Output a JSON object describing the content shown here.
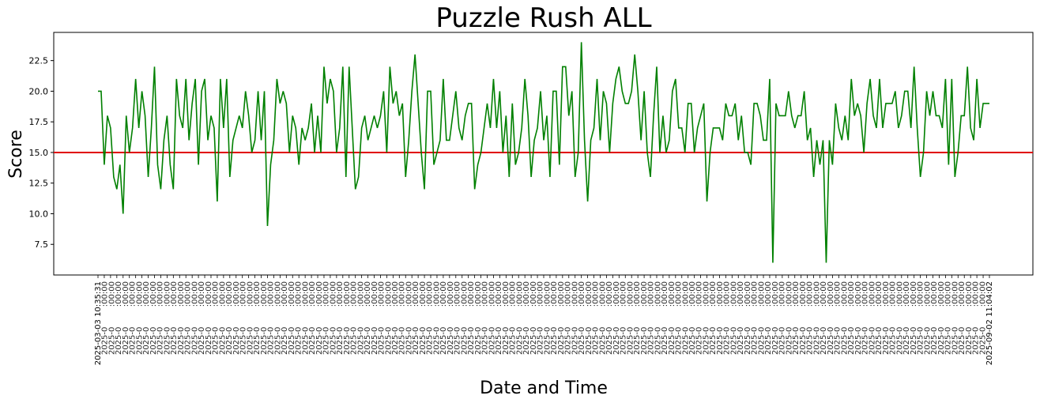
{
  "chart_data": {
    "type": "line",
    "title": "Puzzle Rush ALL",
    "xlabel": "Date and Time",
    "ylabel": "Score",
    "ylim": [
      5.0,
      24.8
    ],
    "yticks": [
      7.5,
      10.0,
      12.5,
      15.0,
      17.5,
      20.0,
      22.5
    ],
    "ytick_labels": [
      "7.5",
      "10.0",
      "12.5",
      "15.0",
      "17.5",
      "20.0",
      "22.5"
    ],
    "x_first_label": "2025-03-03 10:35:31",
    "x_last_label": "2025-09-02 11:04:02",
    "x_tick_labels_legible": false,
    "grid": false,
    "line_color": "#008000",
    "reference_line": {
      "value": 15,
      "color": "#e00000"
    },
    "series": [
      {
        "values": [
          20,
          20,
          14,
          18,
          17,
          13,
          12,
          14,
          10,
          18,
          15,
          17,
          21,
          17,
          20,
          18,
          13,
          17,
          22,
          14,
          12,
          16,
          18,
          14,
          12,
          21,
          18,
          17,
          21,
          16,
          19,
          21,
          14,
          20,
          21,
          16,
          18,
          17,
          11,
          21,
          17,
          21,
          13,
          16,
          17,
          18,
          17,
          20,
          18,
          15,
          16,
          20,
          16,
          20,
          9,
          14,
          16,
          21,
          19,
          20,
          19,
          15,
          18,
          17,
          14,
          17,
          16,
          17,
          19,
          15,
          18,
          15,
          22,
          19,
          21,
          20,
          15,
          17,
          22,
          13,
          22,
          17,
          12,
          13,
          17,
          18,
          16,
          17,
          18,
          17,
          18,
          20,
          15,
          22,
          19,
          20,
          18,
          19,
          13,
          16,
          20,
          23,
          19,
          15,
          12,
          20,
          20,
          14,
          15,
          16,
          21,
          16,
          16,
          18,
          20,
          17,
          16,
          18,
          19,
          19,
          12,
          14,
          15,
          17,
          19,
          17,
          21,
          17,
          20,
          15,
          18,
          13,
          19,
          14,
          15,
          17,
          21,
          18,
          13,
          16,
          17,
          20,
          16,
          18,
          13,
          20,
          20,
          14,
          22,
          22,
          18,
          20,
          13,
          15,
          24,
          16,
          11,
          16,
          17,
          21,
          16,
          20,
          19,
          15,
          19,
          21,
          22,
          20,
          19,
          19,
          20,
          23,
          20,
          16,
          20,
          15,
          13,
          18,
          22,
          15,
          18,
          15,
          16,
          20,
          21,
          17,
          17,
          15,
          19,
          19,
          15,
          17,
          18,
          19,
          11,
          15,
          17,
          17,
          17,
          16,
          19,
          18,
          18,
          19,
          16,
          18,
          15,
          15,
          14,
          19,
          19,
          18,
          16,
          16,
          21,
          6,
          19,
          18,
          18,
          18,
          20,
          18,
          17,
          18,
          18,
          20,
          16,
          17,
          13,
          16,
          14,
          16,
          6,
          16,
          14,
          19,
          17,
          16,
          18,
          16,
          21,
          18,
          19,
          18,
          15,
          19,
          21,
          18,
          17,
          21,
          17,
          19,
          19,
          19,
          20,
          17,
          18,
          20,
          20,
          17,
          22,
          17,
          13,
          15,
          20,
          18,
          20,
          18,
          18,
          17,
          21,
          14,
          21,
          13,
          15,
          18,
          18,
          22,
          17,
          16,
          21,
          17,
          19,
          19,
          19
        ]
      }
    ]
  }
}
